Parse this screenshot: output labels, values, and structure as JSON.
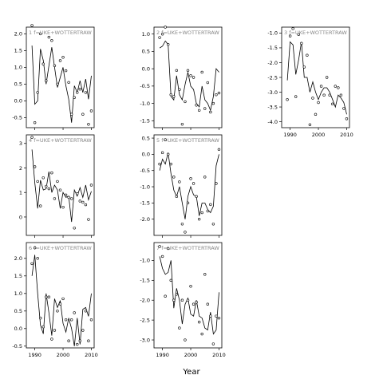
{
  "figure": {
    "xlabel": "Year"
  },
  "chart_data": [
    {
      "type": "line",
      "label": "f=UKE+WOTTERTRAW",
      "xlim": [
        1987,
        2011
      ],
      "ylim": [
        -0.8,
        2.2
      ],
      "xticks": [
        1990,
        2000,
        2010
      ],
      "yticks": [
        -0.5,
        0.0,
        0.5,
        1.0,
        1.5,
        2.0
      ],
      "ytick_labels": [
        "-0.5",
        "0.0",
        "0.5",
        "1.0",
        "1.5",
        "2.0"
      ],
      "show_xticks": false,
      "points": {
        "x": [
          1989,
          1990,
          1991,
          1992,
          1993,
          1994,
          1995,
          1996,
          1997,
          1998,
          1999,
          2000,
          2001,
          2002,
          2003,
          2004,
          2005,
          2006,
          2007,
          2008,
          2009,
          2010
        ],
        "y": [
          2.25,
          -0.65,
          0.25,
          2.0,
          1.1,
          0.6,
          1.9,
          1.8,
          1.05,
          0.5,
          1.2,
          1.3,
          0.9,
          0.55,
          -0.4,
          0.1,
          0.25,
          0.35,
          -0.4,
          0.25,
          -0.7,
          -0.3
        ]
      },
      "fit": {
        "x": [
          1989,
          1990,
          1991,
          1992,
          1993,
          1994,
          1995,
          1996,
          1997,
          1998,
          1999,
          2000,
          2001,
          2002,
          2003,
          2004,
          2005,
          2006,
          2007,
          2008,
          2009,
          2010
        ],
        "y": [
          1.65,
          -0.1,
          0.0,
          1.55,
          1.2,
          0.5,
          1.05,
          1.6,
          1.0,
          0.4,
          0.7,
          1.0,
          0.45,
          0.05,
          -0.65,
          0.45,
          0.25,
          0.6,
          0.25,
          0.65,
          0.05,
          0.75
        ]
      }
    },
    {
      "type": "line",
      "label": "f=UKE+WOTTERTRAW",
      "xlim": [
        1987,
        2011
      ],
      "ylim": [
        -1.7,
        1.2
      ],
      "xticks": [
        1990,
        2000,
        2010
      ],
      "yticks": [
        -1.5,
        -1.0,
        -0.5,
        0.0,
        0.5,
        1.0
      ],
      "ytick_labels": [
        "-1.5",
        "-1.0",
        "-0.5",
        "0.0",
        "0.5",
        "1.0"
      ],
      "show_xticks": false,
      "points": {
        "x": [
          1989,
          1990,
          1991,
          1992,
          1993,
          1994,
          1995,
          1996,
          1997,
          1998,
          1999,
          2000,
          2001,
          2002,
          2003,
          2004,
          2005,
          2006,
          2007,
          2008,
          2009,
          2010
        ],
        "y": [
          0.9,
          1.0,
          1.2,
          0.7,
          -0.75,
          -0.8,
          -0.05,
          -0.6,
          -1.6,
          -0.95,
          -0.05,
          -0.2,
          -0.25,
          -1.05,
          -1.2,
          -0.1,
          -1.15,
          -0.4,
          -1.25,
          -1.0,
          -0.75,
          -0.7
        ]
      },
      "fit": {
        "x": [
          1989,
          1990,
          1991,
          1992,
          1993,
          1994,
          1995,
          1996,
          1997,
          1998,
          1999,
          2000,
          2001,
          2002,
          2003,
          2004,
          2005,
          2006,
          2007,
          2008,
          2009,
          2010
        ],
        "y": [
          0.6,
          0.65,
          0.8,
          0.7,
          -0.8,
          -0.9,
          -0.2,
          -0.75,
          -0.9,
          -0.45,
          -0.1,
          -0.5,
          -0.6,
          -1.0,
          -1.1,
          -0.5,
          -0.9,
          -1.0,
          -1.2,
          -0.8,
          0.0,
          -0.1
        ]
      }
    },
    {
      "type": "line",
      "label": "f=UKE+WOTTERTRAW",
      "xlim": [
        1987,
        2011
      ],
      "ylim": [
        -4.2,
        -0.8
      ],
      "xticks": [
        1990,
        2000,
        2010
      ],
      "yticks": [
        -4.0,
        -3.5,
        -3.0,
        -2.5,
        -2.0,
        -1.5,
        -1.0
      ],
      "ytick_labels": [
        "-4.0",
        "-3.5",
        "-3.0",
        "-2.5",
        "-2.0",
        "-1.5",
        "-1.0"
      ],
      "show_xticks": true,
      "points": {
        "x": [
          1989,
          1990,
          1991,
          1992,
          1993,
          1994,
          1995,
          1996,
          1997,
          1998,
          1999,
          2000,
          2001,
          2002,
          2003,
          2004,
          2005,
          2006,
          2007,
          2008,
          2009,
          2010
        ],
        "y": [
          -3.25,
          -1.1,
          -0.85,
          -3.15,
          -1.05,
          -1.35,
          -2.15,
          -1.75,
          -4.1,
          -3.2,
          -3.75,
          -3.35,
          -2.8,
          -3.1,
          -2.5,
          -3.1,
          -3.4,
          -2.8,
          -2.85,
          -3.1,
          -3.55,
          -3.9
        ]
      },
      "fit": {
        "x": [
          1989,
          1990,
          1991,
          1992,
          1993,
          1994,
          1995,
          1996,
          1997,
          1998,
          1999,
          2000,
          2001,
          2002,
          2003,
          2004,
          2005,
          2006,
          2007,
          2008,
          2009,
          2010
        ],
        "y": [
          -2.6,
          -1.3,
          -1.4,
          -2.4,
          -1.9,
          -1.3,
          -2.5,
          -2.5,
          -3.0,
          -2.65,
          -3.0,
          -3.25,
          -3.0,
          -2.85,
          -2.85,
          -3.0,
          -3.25,
          -3.5,
          -3.1,
          -3.2,
          -3.35,
          -3.75
        ]
      }
    },
    {
      "type": "line",
      "label": "f=UKE+WOTTERTRAW",
      "xlim": [
        1987,
        2011
      ],
      "ylim": [
        -0.75,
        3.35
      ],
      "xticks": [
        1990,
        2000,
        2010
      ],
      "yticks": [
        0,
        1,
        2,
        3
      ],
      "ytick_labels": [
        "0",
        "1",
        "2",
        "3"
      ],
      "show_xticks": false,
      "points": {
        "x": [
          1989,
          1990,
          1991,
          1992,
          1993,
          1994,
          1995,
          1996,
          1997,
          1998,
          1999,
          2000,
          2001,
          2002,
          2003,
          2004,
          2005,
          2006,
          2007,
          2008,
          2009,
          2010
        ],
        "y": [
          3.25,
          2.05,
          1.45,
          0.45,
          1.6,
          1.25,
          1.15,
          1.8,
          0.75,
          1.45,
          1.1,
          0.4,
          0.9,
          0.8,
          0.75,
          -0.45,
          0.95,
          0.65,
          0.6,
          0.5,
          -0.1,
          1.3
        ]
      },
      "fit": {
        "x": [
          1989,
          1990,
          1991,
          1992,
          1993,
          1994,
          1995,
          1996,
          1997,
          1998,
          1999,
          2000,
          2001,
          2002,
          2003,
          2004,
          2005,
          2006,
          2007,
          2008,
          2009,
          2010
        ],
        "y": [
          2.75,
          1.4,
          0.35,
          1.5,
          1.1,
          1.15,
          1.85,
          1.0,
          1.3,
          1.1,
          0.35,
          1.0,
          0.8,
          0.85,
          -0.2,
          1.1,
          0.85,
          1.2,
          0.8,
          1.3,
          0.7,
          1.05
        ]
      }
    },
    {
      "type": "line",
      "label": "f=UKE+WOTTERTRAW",
      "xlim": [
        1987,
        2011
      ],
      "ylim": [
        -2.5,
        0.6
      ],
      "xticks": [
        1990,
        2000,
        2010
      ],
      "yticks": [
        -2.0,
        -1.5,
        -1.0,
        -0.5,
        0.0,
        0.5
      ],
      "ytick_labels": [
        "-2.0",
        "-1.5",
        "-1.0",
        "-0.5",
        "0.0",
        "0.5"
      ],
      "show_xticks": false,
      "points": {
        "x": [
          1989,
          1990,
          1991,
          1992,
          1993,
          1994,
          1995,
          1996,
          1997,
          1998,
          1999,
          2000,
          2001,
          2002,
          2003,
          2004,
          2005,
          2006,
          2007,
          2008,
          2009,
          2010
        ],
        "y": [
          -0.3,
          0.05,
          0.45,
          0.0,
          -0.3,
          -0.7,
          -1.3,
          -0.85,
          -2.15,
          -2.4,
          -1.5,
          -0.75,
          -0.9,
          -1.3,
          -2.0,
          -1.8,
          -0.7,
          -1.75,
          -1.55,
          -2.15,
          -0.9,
          0.15
        ]
      },
      "fit": {
        "x": [
          1989,
          1990,
          1991,
          1992,
          1993,
          1994,
          1995,
          1996,
          1997,
          1998,
          1999,
          2000,
          2001,
          2002,
          2003,
          2004,
          2005,
          2006,
          2007,
          2008,
          2009,
          2010
        ],
        "y": [
          -0.5,
          -0.15,
          -0.3,
          0.05,
          -0.6,
          -1.1,
          -1.3,
          -1.0,
          -1.5,
          -2.0,
          -1.3,
          -1.0,
          -1.25,
          -1.3,
          -1.9,
          -1.5,
          -1.5,
          -1.7,
          -1.8,
          -1.6,
          -0.35,
          0.0
        ]
      }
    },
    {
      "type": "line",
      "label": "f=UKE+WOTTERTRAW",
      "xlim": [
        1987,
        2011
      ],
      "ylim": [
        -0.55,
        2.45
      ],
      "xticks": [
        1990,
        2000,
        2010
      ],
      "yticks": [
        -0.5,
        0.0,
        0.5,
        1.0,
        1.5,
        2.0
      ],
      "ytick_labels": [
        "-0.5",
        "0.0",
        "0.5",
        "1.0",
        "1.5",
        "2.0"
      ],
      "show_xticks": true,
      "points": {
        "x": [
          1989,
          1990,
          1991,
          1992,
          1993,
          1994,
          1995,
          1996,
          1997,
          1998,
          1999,
          2000,
          2001,
          2002,
          2003,
          2004,
          2005,
          2006,
          2007,
          2008,
          2009,
          2010
        ],
        "y": [
          1.85,
          2.3,
          2.0,
          0.3,
          0.05,
          0.9,
          0.9,
          -0.3,
          -0.05,
          0.5,
          0.7,
          0.85,
          0.25,
          -0.35,
          0.25,
          0.45,
          -0.45,
          -0.35,
          -0.05,
          0.5,
          -0.35,
          0.25
        ]
      },
      "fit": {
        "x": [
          1989,
          1990,
          1991,
          1992,
          1993,
          1994,
          1995,
          1996,
          1997,
          1998,
          1999,
          2000,
          2001,
          2002,
          2003,
          2004,
          2005,
          2006,
          2007,
          2008,
          2009,
          2010
        ],
        "y": [
          1.5,
          2.1,
          1.0,
          0.1,
          -0.15,
          1.0,
          0.45,
          -0.2,
          0.85,
          0.6,
          0.8,
          0.15,
          -0.1,
          0.3,
          0.0,
          -0.5,
          0.3,
          -0.45,
          0.55,
          0.6,
          0.35,
          1.0
        ]
      }
    },
    {
      "type": "line",
      "label": "f=UKE+WOTTERTRAW",
      "xlim": [
        1987,
        2011
      ],
      "ylim": [
        -3.2,
        -0.55
      ],
      "xticks": [
        1990,
        2000,
        2010
      ],
      "yticks": [
        -3.0,
        -2.5,
        -2.0,
        -1.5,
        -1.0
      ],
      "ytick_labels": [
        "-3.0",
        "-2.5",
        "-2.0",
        "-1.5",
        "-1.0"
      ],
      "show_xticks": true,
      "points": {
        "x": [
          1989,
          1990,
          1991,
          1992,
          1993,
          1994,
          1995,
          1996,
          1997,
          1998,
          1999,
          2000,
          2001,
          2002,
          2003,
          2004,
          2005,
          2006,
          2007,
          2008,
          2009,
          2010
        ],
        "y": [
          -0.65,
          -0.9,
          -1.9,
          -0.7,
          -1.5,
          -2.0,
          -1.85,
          -2.7,
          -2.0,
          -3.0,
          -2.0,
          -1.65,
          -2.1,
          -2.05,
          -2.55,
          -2.85,
          -1.35,
          -2.1,
          -2.4,
          -3.1,
          -2.4,
          -2.45
        ]
      },
      "fit": {
        "x": [
          1989,
          1990,
          1991,
          1992,
          1993,
          1994,
          1995,
          1996,
          1997,
          1998,
          1999,
          2000,
          2001,
          2002,
          2003,
          2004,
          2005,
          2006,
          2007,
          2008,
          2009,
          2010
        ],
        "y": [
          -0.9,
          -1.2,
          -1.35,
          -1.3,
          -1.0,
          -2.2,
          -1.7,
          -2.0,
          -2.6,
          -2.1,
          -1.95,
          -2.35,
          -2.4,
          -2.0,
          -2.4,
          -2.45,
          -2.7,
          -2.75,
          -2.3,
          -2.85,
          -2.75,
          -1.8
        ]
      }
    }
  ]
}
